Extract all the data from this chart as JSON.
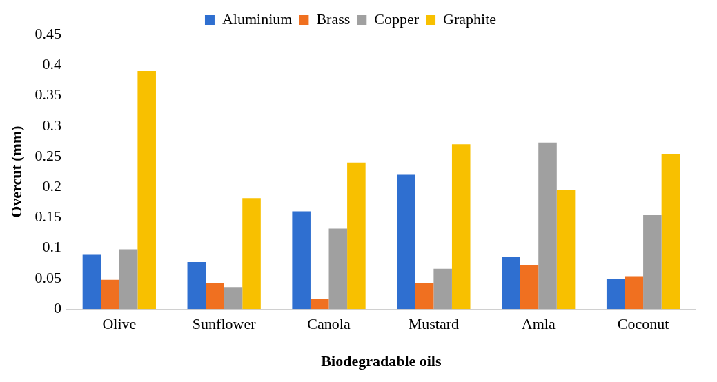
{
  "chart_data": {
    "type": "bar",
    "xlabel": "Biodegradable oils",
    "ylabel": "Overcut (mm)",
    "categories": [
      "Olive",
      "Sunflower",
      "Canola",
      "Mustard",
      "Amla",
      "Coconut"
    ],
    "series": [
      {
        "name": "Aluminium",
        "color": "#2f6fd0",
        "values": [
          0.089,
          0.077,
          0.16,
          0.22,
          0.085,
          0.049
        ]
      },
      {
        "name": "Brass",
        "color": "#f07020",
        "values": [
          0.048,
          0.042,
          0.016,
          0.042,
          0.072,
          0.054
        ]
      },
      {
        "name": "Copper",
        "color": "#a0a0a0",
        "values": [
          0.098,
          0.036,
          0.132,
          0.066,
          0.273,
          0.154
        ]
      },
      {
        "name": "Graphite",
        "color": "#f8c000",
        "values": [
          0.39,
          0.182,
          0.24,
          0.27,
          0.195,
          0.254
        ]
      }
    ],
    "ylim": [
      0,
      0.45
    ],
    "yticks": [
      0,
      0.05,
      0.1,
      0.15,
      0.2,
      0.25,
      0.3,
      0.35,
      0.4,
      0.45
    ],
    "grid": false,
    "legend": "top"
  }
}
